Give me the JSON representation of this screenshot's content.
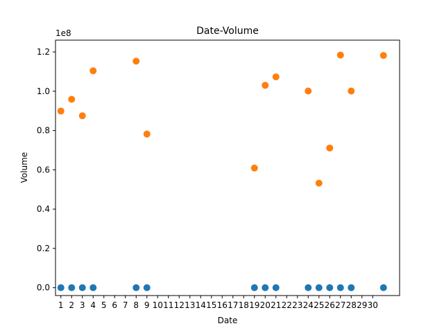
{
  "chart_data": {
    "type": "scatter",
    "title": "Date-Volume",
    "xlabel": "Date",
    "ylabel": "Volume",
    "y_scale_label": "1e8",
    "xlim": [
      -0.5,
      31.5
    ],
    "ylim": [
      -4000000,
      126000000
    ],
    "x_ticks": [
      "1",
      "2",
      "3",
      "4",
      "5",
      "6",
      "7",
      "8",
      "9",
      "10",
      "11",
      "12",
      "13",
      "14",
      "15",
      "16",
      "17",
      "18",
      "19",
      "20",
      "21",
      "22",
      "23",
      "24",
      "25",
      "26",
      "27",
      "28",
      "29",
      "30"
    ],
    "y_ticks": [
      {
        "value": 0,
        "label": "0.0"
      },
      {
        "value": 20000000,
        "label": "0.2"
      },
      {
        "value": 40000000,
        "label": "0.4"
      },
      {
        "value": 60000000,
        "label": "0.6"
      },
      {
        "value": 80000000,
        "label": "0.8"
      },
      {
        "value": 100000000,
        "label": "1.0"
      },
      {
        "value": 120000000,
        "label": "1.2"
      }
    ],
    "grid": false,
    "series": [
      {
        "color": "#1f77b4",
        "points": [
          {
            "x": 0,
            "y": 0
          },
          {
            "x": 1,
            "y": 0
          },
          {
            "x": 2,
            "y": 0
          },
          {
            "x": 3,
            "y": 0
          },
          {
            "x": 7,
            "y": 0
          },
          {
            "x": 8,
            "y": 0
          },
          {
            "x": 18,
            "y": 0
          },
          {
            "x": 19,
            "y": 0
          },
          {
            "x": 20,
            "y": 0
          },
          {
            "x": 23,
            "y": 0
          },
          {
            "x": 24,
            "y": 0
          },
          {
            "x": 25,
            "y": 0
          },
          {
            "x": 26,
            "y": 0
          },
          {
            "x": 27,
            "y": 0
          },
          {
            "x": 30,
            "y": 0
          }
        ]
      },
      {
        "color": "#ff7f0e",
        "points": [
          {
            "x": 0,
            "y": 89900000
          },
          {
            "x": 1,
            "y": 95900000
          },
          {
            "x": 2,
            "y": 87500000
          },
          {
            "x": 3,
            "y": 110400000
          },
          {
            "x": 7,
            "y": 115300000
          },
          {
            "x": 8,
            "y": 78200000
          },
          {
            "x": 18,
            "y": 60900000
          },
          {
            "x": 19,
            "y": 103000000
          },
          {
            "x": 20,
            "y": 107300000
          },
          {
            "x": 23,
            "y": 100100000
          },
          {
            "x": 24,
            "y": 53200000
          },
          {
            "x": 25,
            "y": 71100000
          },
          {
            "x": 26,
            "y": 118400000
          },
          {
            "x": 27,
            "y": 100100000
          },
          {
            "x": 30,
            "y": 118200000
          }
        ]
      }
    ]
  }
}
